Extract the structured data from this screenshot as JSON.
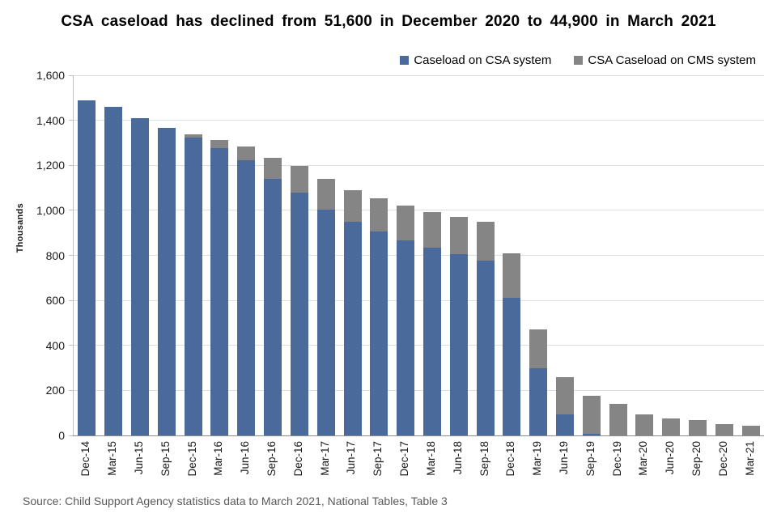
{
  "title": "CSA caseload has declined from 51,600 in December 2020 to 44,900 in March 2021",
  "source": "Source: Child Support Agency statistics data to March 2021, National Tables, Table 3",
  "colors": {
    "csa_bar": "#4A6A9B",
    "cms_bar": "#858585",
    "gridline": "#DEDEDE",
    "axis_line": "#BFBFBF",
    "baseline": "#8C8C8C",
    "footer_text": "#595959"
  },
  "chart_data": {
    "type": "bar",
    "stacked": true,
    "title": "CSA caseload has declined from 51,600 in December 2020 to 44,900 in March 2021",
    "xlabel": "",
    "ylabel": "Thousands",
    "ylim": [
      0,
      1600
    ],
    "ytick_step": 200,
    "grid": true,
    "legend_position": "top-right",
    "categories": [
      "Dec-14",
      "Mar-15",
      "Jun-15",
      "Sep-15",
      "Dec-15",
      "Mar-16",
      "Jun-16",
      "Sep-16",
      "Dec-16",
      "Mar-17",
      "Jun-17",
      "Sep-17",
      "Dec-17",
      "Mar-18",
      "Jun-18",
      "Sep-18",
      "Dec-18",
      "Mar-19",
      "Jun-19",
      "Sep-19",
      "Dec-19",
      "Mar-20",
      "Jun-20",
      "Sep-20",
      "Dec-20",
      "Mar-21"
    ],
    "series": [
      {
        "name": "Caseload on CSA system",
        "color": "#4A6A9B",
        "values": [
          1490,
          1460,
          1410,
          1365,
          1322,
          1277,
          1223,
          1141,
          1078,
          1005,
          950,
          905,
          867,
          835,
          805,
          778,
          612,
          297,
          93,
          8,
          0,
          0,
          0,
          0,
          0,
          0
        ]
      },
      {
        "name": "CSA Caseload on CMS system",
        "color": "#858585",
        "values": [
          0,
          0,
          0,
          0,
          16,
          34,
          62,
          94,
          119,
          134,
          141,
          150,
          155,
          158,
          165,
          172,
          198,
          175,
          165,
          169,
          140,
          95,
          76,
          68,
          51.6,
          44.9
        ]
      }
    ]
  }
}
